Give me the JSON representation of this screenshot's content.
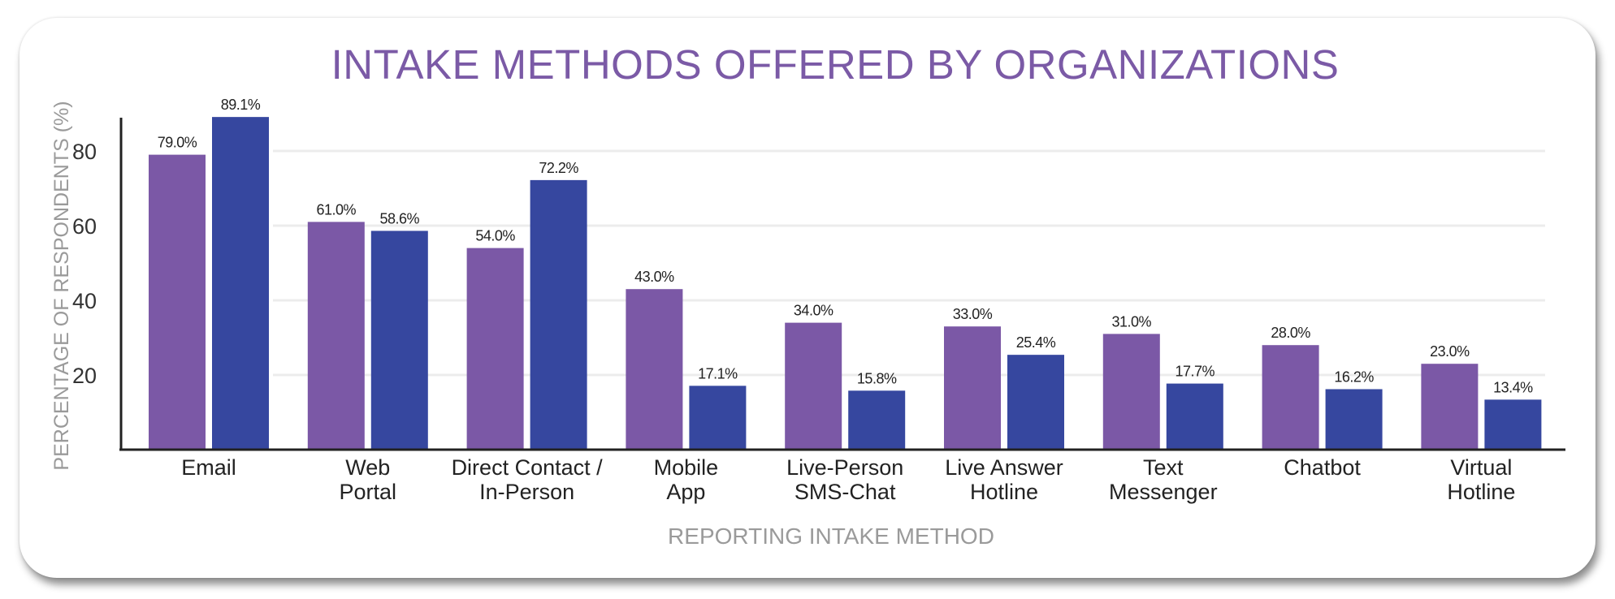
{
  "chart_data": {
    "type": "bar",
    "title": "INTAKE METHODS OFFERED BY ORGANIZATIONS",
    "xlabel": "REPORTING INTAKE METHOD",
    "ylabel": "PERCENTAGE OF RESPONDENTS (%)",
    "ylim": [
      0,
      92
    ],
    "yticks": [
      20,
      40,
      60,
      80
    ],
    "grid": true,
    "categories": [
      [
        "Email"
      ],
      [
        "Web",
        "Portal"
      ],
      [
        "Direct Contact /",
        "In-Person"
      ],
      [
        "Mobile",
        "App"
      ],
      [
        "Live-Person",
        "SMS-Chat"
      ],
      [
        "Live Answer",
        "Hotline"
      ],
      [
        "Text",
        "Messenger"
      ],
      [
        "Chatbot"
      ],
      [
        "Virtual",
        "Hotline"
      ]
    ],
    "series": [
      {
        "name": "Series 1",
        "color": "#7b58a6",
        "values": [
          79.0,
          61.0,
          54.0,
          43.0,
          34.0,
          33.0,
          31.0,
          28.0,
          23.0
        ],
        "labels": [
          "79.0%",
          "61.0%",
          "54.0%",
          "43.0%",
          "34.0%",
          "33.0%",
          "31.0%",
          "28.0%",
          "23.0%"
        ]
      },
      {
        "name": "Series 2",
        "color": "#36479f",
        "values": [
          89.1,
          58.6,
          72.2,
          17.1,
          15.8,
          25.4,
          17.7,
          16.2,
          13.4
        ],
        "labels": [
          "89.1%",
          "58.6%",
          "72.2%",
          "17.1%",
          "15.8%",
          "25.4%",
          "17.7%",
          "16.2%",
          "13.4%"
        ]
      }
    ]
  }
}
